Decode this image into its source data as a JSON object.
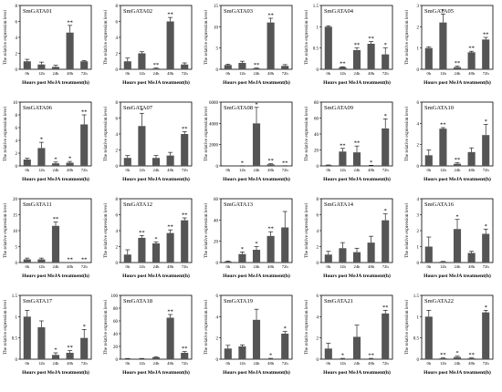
{
  "figure": {
    "xlabel": "Hours post MeJA treatment(h)",
    "ylabel": "The relative expression level",
    "categories": [
      "0h",
      "12h",
      "24h",
      "48h",
      "72h"
    ],
    "bar_color": "#555555"
  },
  "chart_data": [
    {
      "type": "bar",
      "title": "SmGATA01",
      "categories": [
        "0h",
        "12h",
        "24h",
        "48h",
        "72h"
      ],
      "values": [
        1.0,
        0.6,
        0.3,
        4.6,
        1.0
      ],
      "errors": [
        0.25,
        0.3,
        0.2,
        0.9,
        0.1
      ],
      "sig": [
        "",
        "",
        "",
        "**",
        ""
      ],
      "ylim": [
        0,
        8
      ],
      "yticks": [
        0,
        2,
        4,
        6,
        8
      ],
      "xlabel": "Hours post MeJA treatment(h)",
      "ylabel": "The relative expression level"
    },
    {
      "type": "bar",
      "title": "SmGATA02",
      "categories": [
        "0h",
        "12h",
        "24h",
        "48h",
        "72h"
      ],
      "values": [
        1.0,
        2.0,
        0.1,
        6.0,
        0.6
      ],
      "errors": [
        0.4,
        0.2,
        0.05,
        0.5,
        0.2
      ],
      "sig": [
        "",
        "",
        "**",
        "**",
        ""
      ],
      "ylim": [
        0,
        8
      ],
      "yticks": [
        0,
        2,
        4,
        6,
        8
      ],
      "xlabel": "Hours post MeJA treatment(h)",
      "ylabel": "The relative expression level"
    },
    {
      "type": "bar",
      "title": "SmGATA03",
      "categories": [
        "0h",
        "12h",
        "24h",
        "48h",
        "72h"
      ],
      "values": [
        1.0,
        1.5,
        0.2,
        11.0,
        0.8
      ],
      "errors": [
        0.2,
        0.4,
        0.1,
        1.0,
        0.3
      ],
      "sig": [
        "",
        "",
        "**",
        "**",
        ""
      ],
      "ylim": [
        0,
        15
      ],
      "yticks": [
        0,
        5,
        10,
        15
      ],
      "xlabel": "Hours post MeJA treatment(h)",
      "ylabel": "The relative expression level"
    },
    {
      "type": "bar",
      "title": "SmGATA04",
      "categories": [
        "0h",
        "12h",
        "24h",
        "48h",
        "72h"
      ],
      "values": [
        1.0,
        0.05,
        0.45,
        0.6,
        0.35
      ],
      "errors": [
        0.02,
        0.01,
        0.05,
        0.05,
        0.15
      ],
      "sig": [
        "",
        "**",
        "**",
        "**",
        "*"
      ],
      "ylim": [
        0,
        1.5
      ],
      "yticks": [
        0,
        0.5,
        1.0,
        1.5
      ],
      "xlabel": "Hours post MeJA treatment(h)",
      "ylabel": "The relative expression level"
    },
    {
      "type": "bar",
      "title": "SmGATA05",
      "categories": [
        "0h",
        "12h",
        "24h",
        "48h",
        "72h"
      ],
      "values": [
        1.0,
        2.2,
        0.1,
        0.8,
        1.4
      ],
      "errors": [
        0.05,
        0.4,
        0.05,
        0.05,
        0.1
      ],
      "sig": [
        "",
        "*",
        "**",
        "**",
        "**"
      ],
      "ylim": [
        0,
        3
      ],
      "yticks": [
        0,
        1,
        2,
        3
      ],
      "xlabel": "Hours post MeJA treatment(h)",
      "ylabel": "The relative expression level"
    },
    {
      "type": "bar",
      "title": "SmGATA06",
      "categories": [
        "0h",
        "12h",
        "24h",
        "48h",
        "72h"
      ],
      "values": [
        1.0,
        2.8,
        0.4,
        0.5,
        6.5
      ],
      "errors": [
        0.2,
        0.9,
        0.2,
        0.2,
        1.5
      ],
      "sig": [
        "",
        "*",
        "*",
        "*",
        "**"
      ],
      "ylim": [
        0,
        10
      ],
      "yticks": [
        0,
        2,
        4,
        6,
        8,
        10
      ],
      "xlabel": "Hours post MeJA treatment(h)",
      "ylabel": "The relative expression level"
    },
    {
      "type": "bar",
      "title": "SmGATA07",
      "categories": [
        "0h",
        "12h",
        "24h",
        "48h",
        "72h"
      ],
      "values": [
        1.0,
        5.0,
        1.0,
        1.3,
        4.0
      ],
      "errors": [
        0.3,
        1.6,
        0.3,
        0.4,
        0.3
      ],
      "sig": [
        "",
        "*",
        "",
        "",
        "**"
      ],
      "ylim": [
        0,
        8
      ],
      "yticks": [
        0,
        2,
        4,
        6,
        8
      ],
      "xlabel": "Hours post MeJA treatment(h)",
      "ylabel": "The relative expression level"
    },
    {
      "type": "bar",
      "title": "SmGATA08",
      "categories": [
        "0h",
        "12h",
        "24h",
        "48h",
        "72h"
      ],
      "values": [
        1.0,
        10,
        4000,
        150,
        10
      ],
      "errors": [
        0,
        5,
        1500,
        50,
        5
      ],
      "sig": [
        "",
        "*",
        "*",
        "**",
        "**"
      ],
      "ylim": [
        0,
        6000
      ],
      "yticks": [
        0,
        2000,
        4000,
        6000
      ],
      "xlabel": "Hours post MeJA treatment(h)",
      "ylabel": "The relative expression level"
    },
    {
      "type": "bar",
      "title": "SmGATA09",
      "categories": [
        "0h",
        "12h",
        "24h",
        "48h",
        "72h"
      ],
      "values": [
        1.0,
        18,
        17,
        0.5,
        47
      ],
      "errors": [
        0.2,
        4,
        8,
        0.3,
        12
      ],
      "sig": [
        "",
        "**",
        "**",
        "*",
        "*"
      ],
      "ylim": [
        0,
        80
      ],
      "yticks": [
        0,
        20,
        40,
        60,
        80
      ],
      "xlabel": "Hours post MeJA treatment(h)",
      "ylabel": "The relative expression level"
    },
    {
      "type": "bar",
      "title": "SmGATA10",
      "categories": [
        "0h",
        "12h",
        "24h",
        "48h",
        "72h"
      ],
      "values": [
        1.0,
        3.5,
        0.2,
        1.3,
        2.9
      ],
      "errors": [
        0.5,
        0.1,
        0.1,
        0.4,
        1.0
      ],
      "sig": [
        "",
        "**",
        "**",
        "",
        "*"
      ],
      "ylim": [
        0,
        6
      ],
      "yticks": [
        0,
        2,
        4,
        6
      ],
      "xlabel": "Hours post MeJA treatment(h)",
      "ylabel": "The relative expression level"
    },
    {
      "type": "bar",
      "title": "SmGATA11",
      "categories": [
        "0h",
        "12h",
        "24h",
        "48h",
        "72h"
      ],
      "values": [
        1.0,
        1.0,
        11.5,
        0,
        0
      ],
      "errors": [
        0.4,
        0.4,
        1.2,
        0,
        0
      ],
      "sig": [
        "",
        "",
        "**",
        "**",
        "**"
      ],
      "ylim": [
        0,
        20
      ],
      "yticks": [
        0,
        5,
        10,
        15,
        20
      ],
      "xlabel": "Hours post MeJA treatment(h)",
      "ylabel": "The relative expression level"
    },
    {
      "type": "bar",
      "title": "SmGATA12",
      "categories": [
        "0h",
        "12h",
        "24h",
        "48h",
        "72h"
      ],
      "values": [
        1.0,
        3.1,
        2.4,
        3.7,
        5.3
      ],
      "errors": [
        0.6,
        0.3,
        0.2,
        0.4,
        0.3
      ],
      "sig": [
        "",
        "**",
        "*",
        "**",
        "**"
      ],
      "ylim": [
        0,
        8
      ],
      "yticks": [
        0,
        2,
        4,
        6,
        8
      ],
      "xlabel": "Hours post MeJA treatment(h)",
      "ylabel": "The relative expression level"
    },
    {
      "type": "bar",
      "title": "SmGATA13",
      "categories": [
        "0h",
        "12h",
        "24h",
        "48h",
        "72h"
      ],
      "values": [
        1.0,
        8.0,
        12,
        25,
        33
      ],
      "errors": [
        0.5,
        2.0,
        3,
        4,
        15
      ],
      "sig": [
        "",
        "*",
        "*",
        "**",
        ""
      ],
      "ylim": [
        0,
        60
      ],
      "yticks": [
        0,
        20,
        40,
        60
      ],
      "xlabel": "Hours post MeJA treatment(h)",
      "ylabel": "The relative expression level"
    },
    {
      "type": "bar",
      "title": "SmGATA14",
      "categories": [
        "0h",
        "12h",
        "24h",
        "48h",
        "72h"
      ],
      "values": [
        1.0,
        1.8,
        1.3,
        2.5,
        5.3
      ],
      "errors": [
        0.4,
        0.7,
        0.5,
        0.8,
        0.8
      ],
      "sig": [
        "",
        "",
        "",
        "",
        "*"
      ],
      "ylim": [
        0,
        8
      ],
      "yticks": [
        0,
        2,
        4,
        6,
        8
      ],
      "xlabel": "Hours post MeJA treatment(h)",
      "ylabel": "The relative expression level"
    },
    {
      "type": "bar",
      "title": "SmGATA16",
      "categories": [
        "0h",
        "12h",
        "24h",
        "48h",
        "72h"
      ],
      "values": [
        1.0,
        0.05,
        2.1,
        0.6,
        1.8
      ],
      "errors": [
        0.6,
        0.02,
        0.6,
        0.1,
        0.3
      ],
      "sig": [
        "",
        "",
        "*",
        "",
        "*"
      ],
      "ylim": [
        0,
        4
      ],
      "yticks": [
        0,
        1,
        2,
        3,
        4
      ],
      "xlabel": "Hours post MeJA treatment(h)",
      "ylabel": "The relative expression level"
    },
    {
      "type": "bar",
      "title": "SmGATA17",
      "categories": [
        "0h",
        "12h",
        "24h",
        "48h",
        "72h"
      ],
      "values": [
        1.0,
        0.75,
        0.1,
        0.15,
        0.5
      ],
      "errors": [
        0.15,
        0.15,
        0.05,
        0.05,
        0.2
      ],
      "sig": [
        "",
        "",
        "*",
        "**",
        "*"
      ],
      "ylim": [
        0,
        1.5
      ],
      "yticks": [
        0,
        0.5,
        1.0,
        1.5
      ],
      "xlabel": "Hours post MeJA treatment(h)",
      "ylabel": "The relative expression level"
    },
    {
      "type": "bar",
      "title": "SmGATA18",
      "categories": [
        "0h",
        "12h",
        "24h",
        "48h",
        "72h"
      ],
      "values": [
        1.0,
        1.0,
        3.0,
        65,
        10
      ],
      "errors": [
        0.2,
        0.2,
        1.0,
        5,
        2
      ],
      "sig": [
        "",
        "",
        "",
        "**",
        "**"
      ],
      "ylim": [
        0,
        100
      ],
      "yticks": [
        0,
        20,
        40,
        60,
        80,
        100
      ],
      "xlabel": "Hours post MeJA treatment(h)",
      "ylabel": "The relative expression level"
    },
    {
      "type": "bar",
      "title": "SmGATA19",
      "categories": [
        "0h",
        "12h",
        "24h",
        "48h",
        "72h"
      ],
      "values": [
        1.0,
        1.2,
        3.7,
        0.05,
        2.4
      ],
      "errors": [
        0.3,
        0.15,
        1.0,
        0.03,
        0.2
      ],
      "sig": [
        "",
        "",
        "",
        "*",
        "*"
      ],
      "ylim": [
        0,
        6
      ],
      "yticks": [
        0,
        2,
        4,
        6
      ],
      "xlabel": "Hours post MeJA treatment(h)",
      "ylabel": "The relative expression level"
    },
    {
      "type": "bar",
      "title": "SmGATA21",
      "categories": [
        "0h",
        "12h",
        "24h",
        "48h",
        "72h"
      ],
      "values": [
        1.0,
        0.05,
        2.1,
        0.05,
        4.3
      ],
      "errors": [
        0.5,
        0.03,
        1.1,
        0.03,
        0.3
      ],
      "sig": [
        "",
        "*",
        "",
        "**",
        "**"
      ],
      "ylim": [
        0,
        6
      ],
      "yticks": [
        0,
        2,
        4,
        6
      ],
      "xlabel": "Hours post MeJA treatment(h)",
      "ylabel": "The relative expression level"
    },
    {
      "type": "bar",
      "title": "SmGATA22",
      "categories": [
        "0h",
        "12h",
        "24h",
        "48h",
        "72h"
      ],
      "values": [
        1.0,
        0.02,
        0.05,
        0.02,
        1.1
      ],
      "errors": [
        0.15,
        0.01,
        0.02,
        0.01,
        0.05
      ],
      "sig": [
        "",
        "**",
        "*",
        "**",
        "*"
      ],
      "ylim": [
        0,
        1.5
      ],
      "yticks": [
        0,
        0.5,
        1.0,
        1.5
      ],
      "xlabel": "Hours post MeJA treatment(h)",
      "ylabel": "The relative expression level"
    }
  ]
}
